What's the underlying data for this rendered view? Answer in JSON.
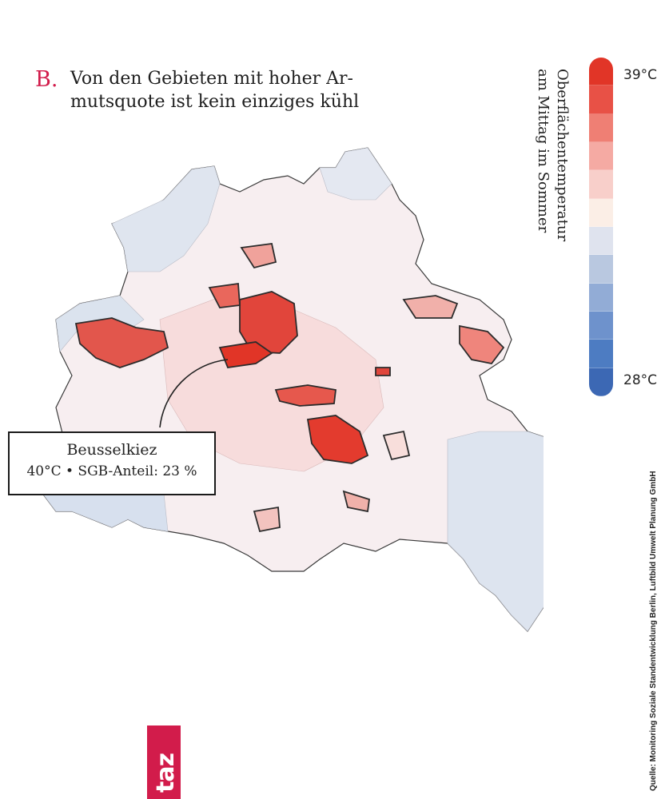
{
  "heading": {
    "letter": "B.",
    "title": "Von den Gebieten mit hoher Ar-mutsquote ist kein einziges kühl"
  },
  "legend": {
    "title_line1": "Oberflächentemperatur",
    "title_line2": "am Mittag im Sommer",
    "max_label": "39°C",
    "min_label": "28°C",
    "colors": [
      "#e13527",
      "#e85146",
      "#ef7f74",
      "#f5aaa3",
      "#f8cfca",
      "#fbeee6",
      "#dfe3ee",
      "#b9c8e0",
      "#92acd6",
      "#6e92cc",
      "#4d7cc2",
      "#3c68b4"
    ]
  },
  "callout": {
    "name": "Beusselkiez",
    "detail": "40°C • SGB-Anteil: 23 %"
  },
  "source": "Quelle: Monitoring Soziale Standentwicklung Berlin, Luftbild Umwelt Planung GmbH",
  "logo": "taz"
}
